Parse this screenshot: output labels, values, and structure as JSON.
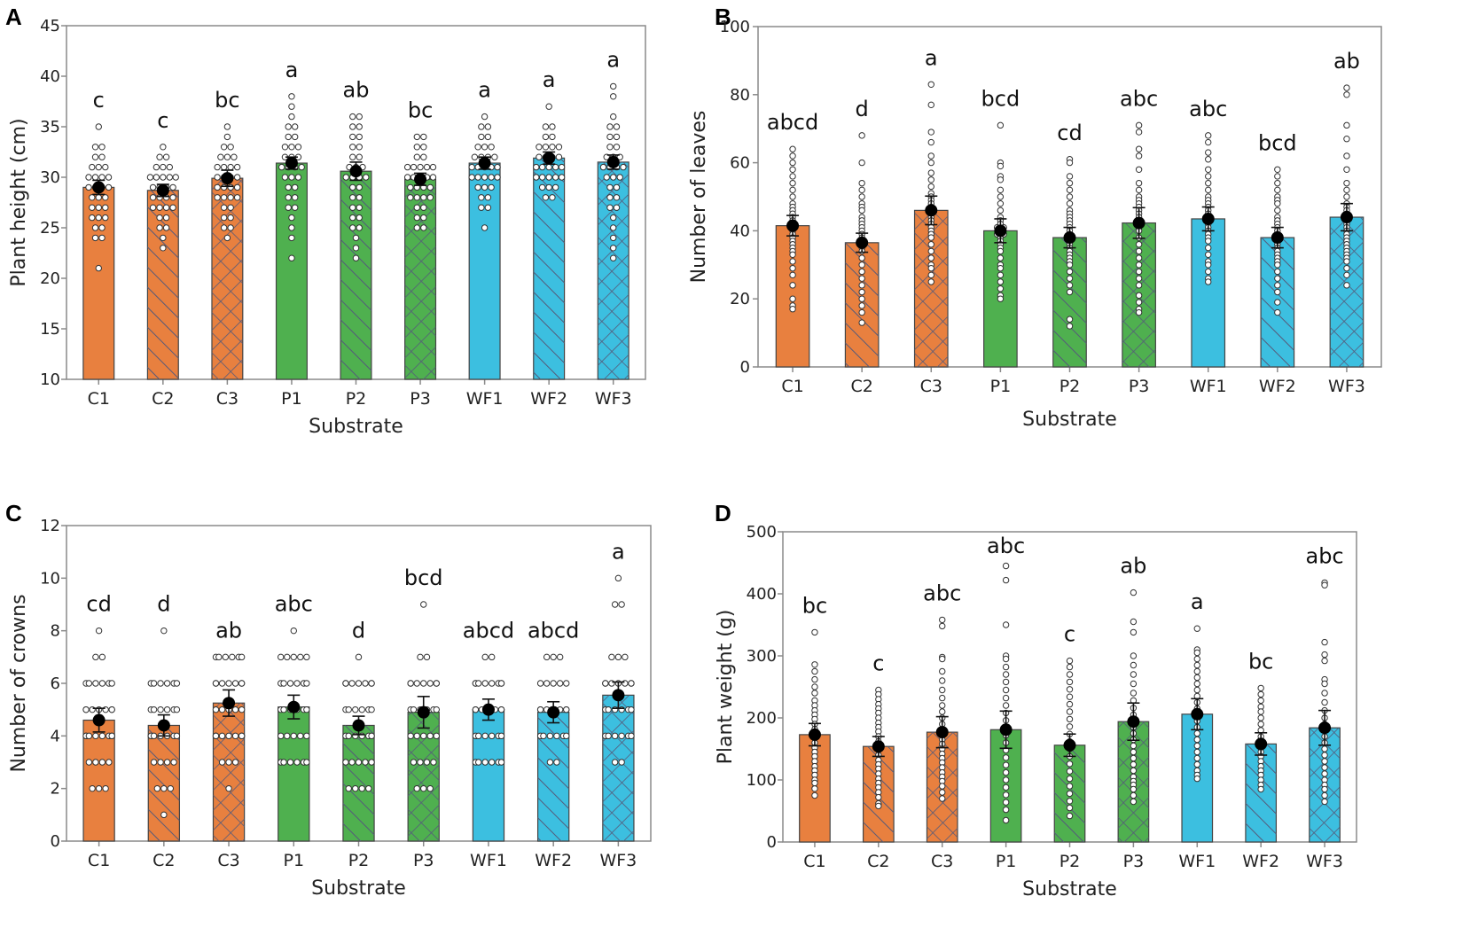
{
  "colors": {
    "C": "#e8803f",
    "P": "#4fb04f",
    "WF": "#3cbfe0",
    "bar_edge": "#444444",
    "hatch": "#555a7a",
    "axis": "#8a8a8a"
  },
  "chart_data": [
    {
      "panel": "A",
      "type": "bar",
      "xlabel": "Substrate",
      "ylabel": "Plant height (cm)",
      "ylim": [
        10,
        45
      ],
      "yticks": [
        10,
        15,
        20,
        25,
        30,
        35,
        40,
        45
      ],
      "categories": [
        "C1",
        "C2",
        "C3",
        "P1",
        "P2",
        "P3",
        "WF1",
        "WF2",
        "WF3"
      ],
      "values": [
        29.0,
        28.7,
        29.9,
        31.4,
        30.6,
        29.8,
        31.4,
        31.9,
        31.5
      ],
      "error": [
        0.7,
        0.6,
        0.8,
        0.6,
        0.9,
        0.6,
        0.6,
        0.6,
        0.7
      ],
      "letters": [
        "c",
        "c",
        "bc",
        "a",
        "ab",
        "bc",
        "a",
        "a",
        "a"
      ],
      "points": [
        [
          35,
          33,
          33,
          32,
          32,
          31,
          31,
          30,
          30,
          30,
          29,
          29,
          29,
          28,
          28,
          28,
          27,
          27,
          27,
          26,
          26,
          26,
          25,
          25,
          24,
          24,
          21,
          30,
          31,
          29
        ],
        [
          33,
          32,
          32,
          31,
          31,
          30,
          30,
          30,
          29,
          29,
          29,
          28,
          28,
          28,
          27,
          27,
          27,
          26,
          26,
          25,
          25,
          24,
          23,
          30,
          29,
          28,
          31,
          30,
          27
        ],
        [
          35,
          34,
          33,
          33,
          32,
          32,
          31,
          31,
          31,
          30,
          30,
          30,
          29,
          29,
          29,
          28,
          28,
          28,
          27,
          27,
          26,
          26,
          25,
          25,
          24,
          30,
          31,
          29,
          28,
          32
        ],
        [
          38,
          37,
          36,
          35,
          35,
          34,
          34,
          33,
          33,
          32,
          32,
          32,
          31,
          31,
          31,
          30,
          30,
          30,
          29,
          29,
          28,
          28,
          27,
          27,
          26,
          25,
          24,
          22,
          31,
          33
        ],
        [
          36,
          36,
          35,
          35,
          34,
          34,
          33,
          33,
          32,
          32,
          31,
          31,
          30,
          30,
          30,
          29,
          29,
          28,
          28,
          27,
          27,
          26,
          26,
          25,
          25,
          24,
          23,
          22,
          31,
          30
        ],
        [
          34,
          34,
          33,
          33,
          32,
          32,
          31,
          31,
          31,
          30,
          30,
          30,
          29,
          29,
          29,
          28,
          28,
          28,
          27,
          27,
          26,
          26,
          25,
          25,
          30,
          31,
          29,
          28,
          30,
          31
        ],
        [
          36,
          35,
          35,
          34,
          34,
          33,
          33,
          33,
          32,
          32,
          32,
          31,
          31,
          31,
          30,
          30,
          30,
          30,
          29,
          29,
          28,
          28,
          27,
          27,
          25,
          31,
          32,
          30,
          29,
          31
        ],
        [
          37,
          35,
          35,
          34,
          34,
          33,
          33,
          33,
          32,
          32,
          32,
          31,
          31,
          31,
          30,
          30,
          30,
          29,
          29,
          28,
          28,
          32,
          31,
          30,
          33,
          29,
          31,
          30
        ],
        [
          39,
          38,
          36,
          35,
          35,
          34,
          34,
          33,
          33,
          32,
          32,
          32,
          31,
          31,
          31,
          30,
          30,
          30,
          29,
          29,
          28,
          28,
          27,
          27,
          26,
          25,
          24,
          23,
          22,
          31
        ]
      ]
    },
    {
      "panel": "B",
      "type": "bar",
      "xlabel": "Substrate",
      "ylabel": "Number of leaves",
      "ylim": [
        0,
        100
      ],
      "yticks": [
        0,
        20,
        40,
        60,
        80,
        100
      ],
      "categories": [
        "C1",
        "C2",
        "C3",
        "P1",
        "P2",
        "P3",
        "WF1",
        "WF2",
        "WF3"
      ],
      "values": [
        41.5,
        36.5,
        46,
        40,
        38,
        42.3,
        43.5,
        38,
        44
      ],
      "error": [
        3.0,
        2.8,
        4.2,
        3.5,
        3.0,
        4.5,
        3.5,
        3.0,
        4.0
      ],
      "letters": [
        "abcd",
        "d",
        "a",
        "bcd",
        "cd",
        "abc",
        "abc",
        "bcd",
        "ab"
      ],
      "points": [
        [
          64,
          62,
          60,
          58,
          56,
          54,
          52,
          50,
          48,
          47,
          46,
          45,
          44,
          43,
          42,
          41,
          40,
          39,
          38,
          37,
          36,
          35,
          34,
          33,
          31,
          29,
          27,
          24,
          20,
          18,
          17
        ],
        [
          68,
          60,
          54,
          52,
          50,
          48,
          47,
          46,
          44,
          43,
          42,
          41,
          40,
          39,
          38,
          37,
          36,
          35,
          34,
          32,
          30,
          28,
          26,
          24,
          22,
          20,
          18,
          16,
          13
        ],
        [
          83,
          77,
          69,
          66,
          62,
          60,
          57,
          55,
          53,
          51,
          50,
          49,
          48,
          47,
          46,
          45,
          44,
          43,
          42,
          41,
          40,
          39,
          38,
          36,
          34,
          32,
          30,
          29,
          27,
          25
        ],
        [
          71,
          60,
          59,
          56,
          55,
          52,
          50,
          48,
          46,
          44,
          43,
          42,
          41,
          40,
          39,
          38,
          37,
          36,
          35,
          34,
          32,
          30,
          29,
          27,
          25,
          23,
          21,
          20,
          39,
          41
        ],
        [
          61,
          60,
          56,
          54,
          52,
          50,
          48,
          46,
          45,
          44,
          43,
          42,
          41,
          40,
          39,
          38,
          37,
          36,
          35,
          34,
          33,
          32,
          31,
          30,
          28,
          26,
          24,
          22,
          14,
          12
        ],
        [
          71,
          69,
          64,
          62,
          58,
          54,
          52,
          50,
          49,
          48,
          47,
          46,
          45,
          44,
          43,
          42,
          41,
          40,
          38,
          36,
          34,
          32,
          30,
          28,
          26,
          24,
          21,
          19,
          17,
          16
        ],
        [
          68,
          66,
          63,
          61,
          58,
          56,
          54,
          52,
          50,
          49,
          48,
          47,
          46,
          45,
          44,
          43,
          42,
          41,
          40,
          39,
          38,
          37,
          35,
          33,
          31,
          30,
          28,
          26,
          25
        ],
        [
          58,
          56,
          54,
          52,
          50,
          49,
          48,
          46,
          44,
          43,
          42,
          41,
          40,
          39,
          38,
          37,
          36,
          35,
          34,
          33,
          32,
          31,
          30,
          28,
          26,
          24,
          22,
          19,
          16
        ],
        [
          82,
          80,
          71,
          67,
          62,
          58,
          54,
          52,
          50,
          48,
          47,
          46,
          45,
          44,
          43,
          42,
          41,
          40,
          39,
          38,
          37,
          36,
          35,
          34,
          33,
          32,
          31,
          29,
          27,
          24
        ]
      ]
    },
    {
      "panel": "C",
      "type": "bar",
      "xlabel": "Substrate",
      "ylabel": "Number of crowns",
      "ylim": [
        0,
        12
      ],
      "yticks": [
        0,
        2,
        4,
        6,
        8,
        10,
        12
      ],
      "categories": [
        "C1",
        "C2",
        "C3",
        "P1",
        "P2",
        "P3",
        "WF1",
        "WF2",
        "WF3"
      ],
      "values": [
        4.6,
        4.4,
        5.25,
        5.1,
        4.4,
        4.9,
        5.0,
        4.9,
        5.55
      ],
      "error": [
        0.45,
        0.4,
        0.5,
        0.45,
        0.35,
        0.6,
        0.4,
        0.4,
        0.5
      ],
      "letters": [
        "cd",
        "d",
        "ab",
        "abc",
        "d",
        "bcd",
        "abcd",
        "abcd",
        "a"
      ],
      "points": [
        [
          8,
          7,
          7,
          6,
          6,
          6,
          6,
          6,
          6,
          5,
          5,
          5,
          5,
          5,
          5,
          5,
          4,
          4,
          4,
          4,
          4,
          4,
          4,
          4,
          3,
          3,
          3,
          3,
          2,
          2,
          2
        ],
        [
          8,
          6,
          6,
          6,
          6,
          6,
          6,
          5,
          5,
          5,
          5,
          5,
          5,
          4,
          4,
          4,
          4,
          4,
          4,
          3,
          3,
          3,
          3,
          2,
          2,
          2,
          1
        ],
        [
          7,
          7,
          7,
          7,
          7,
          7,
          6,
          6,
          6,
          6,
          6,
          6,
          6,
          5,
          5,
          5,
          5,
          5,
          4,
          4,
          4,
          4,
          4,
          4,
          4,
          3,
          3,
          3,
          2
        ],
        [
          8,
          7,
          7,
          7,
          7,
          7,
          6,
          6,
          6,
          6,
          6,
          6,
          5,
          5,
          5,
          5,
          5,
          5,
          4,
          4,
          4,
          4,
          4,
          3,
          3,
          3,
          3,
          3,
          3
        ],
        [
          7,
          6,
          6,
          6,
          6,
          6,
          6,
          6,
          5,
          5,
          5,
          5,
          5,
          5,
          4,
          4,
          4,
          4,
          4,
          4,
          3,
          3,
          3,
          3,
          3,
          2,
          2,
          2,
          2
        ],
        [
          9,
          7,
          7,
          6,
          6,
          6,
          6,
          6,
          6,
          6,
          5,
          5,
          5,
          5,
          5,
          5,
          4,
          4,
          4,
          4,
          4,
          3,
          3,
          3,
          3,
          2,
          2,
          2
        ],
        [
          7,
          7,
          6,
          6,
          6,
          6,
          6,
          6,
          6,
          6,
          5,
          5,
          5,
          5,
          5,
          5,
          5,
          4,
          4,
          4,
          4,
          4,
          4,
          3,
          3,
          3,
          3,
          3,
          3
        ],
        [
          7,
          7,
          7,
          6,
          6,
          6,
          6,
          6,
          5,
          5,
          5,
          5,
          5,
          5,
          5,
          4,
          4,
          4,
          4,
          4,
          4,
          3,
          3
        ],
        [
          10,
          9,
          9,
          7,
          7,
          7,
          6,
          6,
          6,
          6,
          6,
          6,
          6,
          5,
          5,
          5,
          5,
          5,
          5,
          4,
          4,
          4,
          4,
          4,
          4,
          3,
          3
        ]
      ]
    },
    {
      "panel": "D",
      "type": "bar",
      "xlabel": "Substrate",
      "ylabel": "Plant weight (g)",
      "ylim": [
        0,
        500
      ],
      "yticks": [
        0,
        100,
        200,
        300,
        400,
        500
      ],
      "categories": [
        "C1",
        "C2",
        "C3",
        "P1",
        "P2",
        "P3",
        "WF1",
        "WF2",
        "WF3"
      ],
      "values": [
        173,
        154,
        177,
        181,
        156,
        194,
        206,
        158,
        184
      ],
      "error": [
        18,
        16,
        25,
        30,
        18,
        30,
        25,
        18,
        28
      ],
      "letters": [
        "bc",
        "c",
        "abc",
        "abc",
        "c",
        "ab",
        "a",
        "bc",
        "abc"
      ],
      "points": [
        [
          338,
          286,
          275,
          262,
          250,
          240,
          228,
          220,
          212,
          205,
          198,
          190,
          182,
          175,
          168,
          160,
          152,
          145,
          138,
          130,
          122,
          115,
          108,
          100,
          95,
          86,
          75
        ],
        [
          245,
          238,
          230,
          222,
          215,
          208,
          200,
          192,
          185,
          178,
          170,
          162,
          155,
          148,
          140,
          132,
          125,
          118,
          110,
          102,
          95,
          88,
          80,
          72,
          62,
          58
        ],
        [
          358,
          348,
          298,
          295,
          275,
          260,
          245,
          232,
          220,
          210,
          200,
          190,
          180,
          172,
          165,
          158,
          150,
          142,
          135,
          128,
          120,
          112,
          105,
          98,
          90,
          80,
          70
        ],
        [
          445,
          422,
          350,
          300,
          295,
          282,
          270,
          258,
          245,
          232,
          220,
          208,
          196,
          184,
          172,
          160,
          148,
          136,
          124,
          112,
          100,
          88,
          76,
          64,
          52,
          35
        ],
        [
          292,
          282,
          270,
          258,
          246,
          234,
          222,
          210,
          198,
          186,
          174,
          162,
          150,
          138,
          126,
          114,
          102,
          90,
          78,
          66,
          55,
          42
        ],
        [
          402,
          355,
          338,
          300,
          285,
          270,
          255,
          240,
          228,
          216,
          205,
          195,
          185,
          175,
          165,
          155,
          145,
          135,
          125,
          115,
          105,
          98,
          92,
          85,
          75,
          65
        ],
        [
          344,
          310,
          305,
          295,
          285,
          275,
          265,
          255,
          245,
          235,
          225,
          215,
          205,
          195,
          185,
          175,
          165,
          155,
          145,
          135,
          125,
          115,
          108,
          102
        ],
        [
          248,
          238,
          228,
          218,
          210,
          200,
          190,
          180,
          170,
          160,
          152,
          145,
          138,
          130,
          122,
          115,
          108,
          100,
          92,
          85
        ],
        [
          418,
          414,
          322,
          302,
          292,
          262,
          255,
          240,
          225,
          212,
          200,
          190,
          180,
          170,
          160,
          150,
          140,
          130,
          120,
          110,
          100,
          92,
          85,
          75,
          65
        ]
      ]
    }
  ]
}
